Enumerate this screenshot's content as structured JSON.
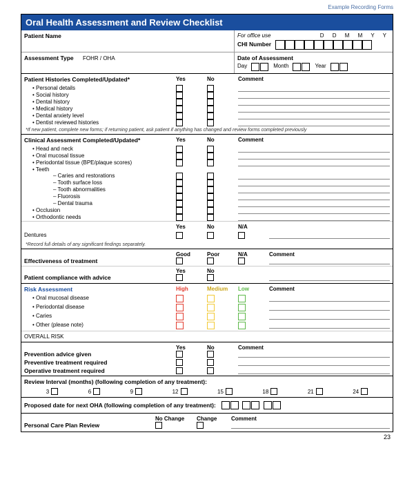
{
  "colors": {
    "header_bg": "#1a4e9e",
    "risk_high": "#e23b2e",
    "risk_med": "#f2c935",
    "risk_low": "#5cb848",
    "border": "#000000"
  },
  "watermark": "Example Recording Forms",
  "title": "Oral Health Assessment and Review Checklist",
  "patient_name_label": "Patient Name",
  "office_use": "For office use",
  "chi_label": "CHI Number",
  "date_hint": "D  D  M  M  Y  Y",
  "assess_type_label": "Assessment Type",
  "assess_type_opts": "FOHR  /  OHA",
  "date_assess_label": "Date of Assessment",
  "day": "Day",
  "month": "Month",
  "year": "Year",
  "cols": {
    "yes": "Yes",
    "no": "No",
    "na": "N/A",
    "comment": "Comment",
    "good": "Good",
    "poor": "Poor",
    "high": "High",
    "medium": "Medium",
    "low": "Low",
    "nochange": "No Change",
    "change": "Change"
  },
  "hist": {
    "title": "Patient Histories Completed/Updated*",
    "items": [
      "Personal details",
      "Social history",
      "Dental history",
      "Medical history",
      "Dental anxiety level",
      "Dentist reviewed histories"
    ],
    "note": "*If new patient, complete new forms; if returning patient, ask patient if anything has changed and review forms completed previously"
  },
  "clinical": {
    "title": "Clinical Assessment Completed/Updated*",
    "items": [
      "Head and neck",
      "Oral mucosal tissue",
      "Periodontal tissue (BPE/plaque scores)"
    ],
    "teeth": "Teeth",
    "teeth_sub": [
      "Caries and restorations",
      "Tooth surface loss",
      "Tooth abnormalities",
      "Fluorosis",
      "Dental trauma"
    ],
    "items2": [
      "Occlusion",
      "Orthodontic needs"
    ],
    "dentures": "Dentures",
    "note": "*Record full details of any significant findings separately."
  },
  "eff": "Effectiveness of treatment",
  "compliance": "Patient compliance with advice",
  "risk": {
    "title": "Risk Assessment",
    "items": [
      "Oral mucosal disease",
      "Periodontal disease",
      "Caries",
      "Other (please note)"
    ],
    "overall": "OVERALL RISK"
  },
  "prev": [
    "Prevention advice given",
    "Preventive treatment required",
    "Operative treatment required"
  ],
  "review": {
    "title": "Review Interval (months) (following completion of any treatment):",
    "vals": [
      "3",
      "6",
      "9",
      "12",
      "15",
      "18",
      "21",
      "24"
    ]
  },
  "proposed": "Proposed date for next OHA (following completion of any treatment):",
  "personal": "Personal Care Plan Review",
  "page_num": "23"
}
